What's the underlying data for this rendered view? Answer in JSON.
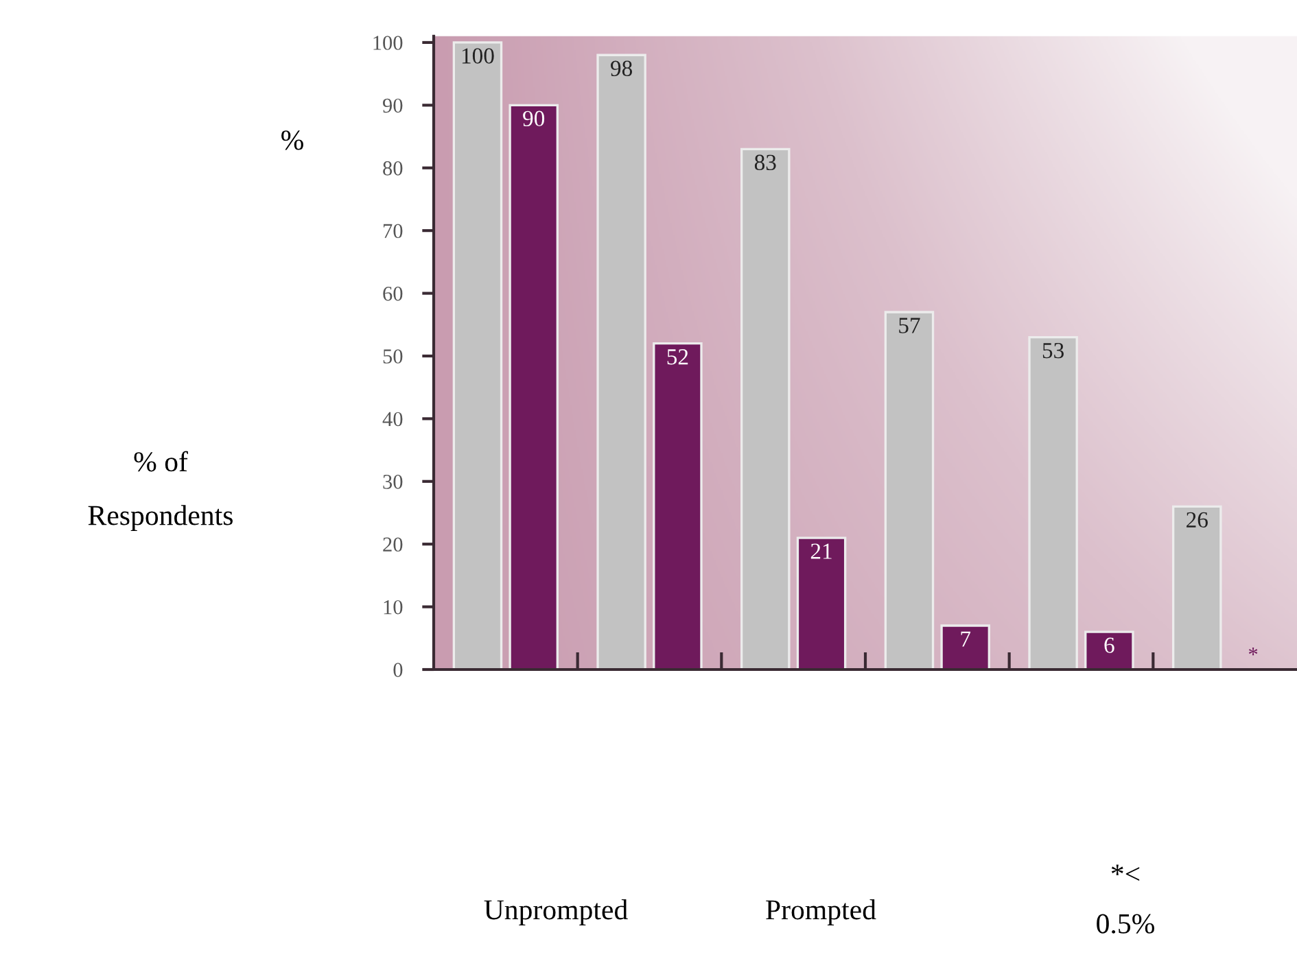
{
  "chart_data": {
    "type": "bar",
    "ylabel": "% of\nRespondents",
    "categories": [
      null,
      null,
      null,
      null,
      null,
      null
    ],
    "series": [
      {
        "color": "#c2c2c2",
        "values": [
          100,
          98,
          83,
          57,
          53,
          26
        ],
        "value_labels": [
          "100",
          "98",
          "83",
          "57",
          "53",
          "26"
        ]
      },
      {
        "color": "#6f1a5c",
        "values": [
          90,
          52,
          21,
          7,
          6,
          null
        ],
        "value_labels": [
          "90",
          "52",
          "21",
          "7",
          "6",
          "*"
        ]
      }
    ],
    "ylim": [
      0,
      101
    ],
    "yticks": [
      0,
      10,
      20,
      30,
      40,
      50,
      60,
      70,
      80,
      90,
      100
    ],
    "annotations": [
      "%",
      "Unprompted",
      "Prompted",
      "*<\n0.5%"
    ]
  }
}
